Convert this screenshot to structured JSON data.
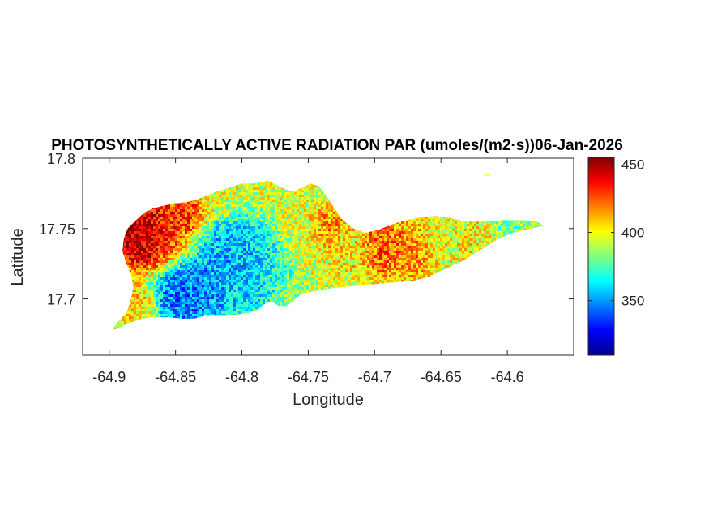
{
  "chart_data": {
    "type": "heatmap",
    "title": "PHOTOSYNTHETICALLY ACTIVE RADIATION PAR (umoles/(m2·s))06-Jan-2026",
    "xlabel": "Longitude",
    "ylabel": "Latitude",
    "xlim": [
      -64.92,
      -64.55
    ],
    "ylim": [
      17.66,
      17.8
    ],
    "xticks": [
      -64.9,
      -64.85,
      -64.8,
      -64.75,
      -64.7,
      -64.65,
      -64.6
    ],
    "xtick_labels": [
      "-64.9",
      "-64.85",
      "-64.8",
      "-64.75",
      "-64.7",
      "-64.65",
      "-64.6"
    ],
    "yticks": [
      17.7,
      17.75,
      17.8
    ],
    "ytick_labels": [
      "17.7",
      "17.75",
      "17.8"
    ],
    "grid": false,
    "colormap": "jet",
    "colorbar": {
      "clim": [
        310,
        455
      ],
      "ticks": [
        350,
        400,
        450
      ],
      "tick_labels": [
        "350",
        "400",
        "450"
      ]
    },
    "region": "St. Croix island outline",
    "outline_lonlat": [
      [
        -64.898,
        17.678
      ],
      [
        -64.893,
        17.684
      ],
      [
        -64.887,
        17.69
      ],
      [
        -64.884,
        17.698
      ],
      [
        -64.882,
        17.707
      ],
      [
        -64.883,
        17.716
      ],
      [
        -64.887,
        17.725
      ],
      [
        -64.89,
        17.734
      ],
      [
        -64.889,
        17.743
      ],
      [
        -64.886,
        17.75
      ],
      [
        -64.881,
        17.755
      ],
      [
        -64.875,
        17.76
      ],
      [
        -64.868,
        17.764
      ],
      [
        -64.86,
        17.766
      ],
      [
        -64.85,
        17.768
      ],
      [
        -64.84,
        17.769
      ],
      [
        -64.83,
        17.772
      ],
      [
        -64.82,
        17.776
      ],
      [
        -64.81,
        17.779
      ],
      [
        -64.8,
        17.782
      ],
      [
        -64.79,
        17.782
      ],
      [
        -64.78,
        17.784
      ],
      [
        -64.77,
        17.779
      ],
      [
        -64.762,
        17.776
      ],
      [
        -64.755,
        17.779
      ],
      [
        -64.748,
        17.782
      ],
      [
        -64.742,
        17.78
      ],
      [
        -64.736,
        17.773
      ],
      [
        -64.73,
        17.764
      ],
      [
        -64.724,
        17.756
      ],
      [
        -64.716,
        17.75
      ],
      [
        -64.707,
        17.747
      ],
      [
        -64.697,
        17.749
      ],
      [
        -64.687,
        17.753
      ],
      [
        -64.676,
        17.756
      ],
      [
        -64.665,
        17.758
      ],
      [
        -64.655,
        17.759
      ],
      [
        -64.645,
        17.758
      ],
      [
        -64.632,
        17.755
      ],
      [
        -64.618,
        17.755
      ],
      [
        -64.603,
        17.756
      ],
      [
        -64.588,
        17.756
      ],
      [
        -64.578,
        17.755
      ],
      [
        -64.572,
        17.752
      ],
      [
        -64.582,
        17.75
      ],
      [
        -64.596,
        17.747
      ],
      [
        -64.608,
        17.742
      ],
      [
        -64.62,
        17.735
      ],
      [
        -64.632,
        17.728
      ],
      [
        -64.645,
        17.722
      ],
      [
        -64.658,
        17.716
      ],
      [
        -64.67,
        17.713
      ],
      [
        -64.682,
        17.712
      ],
      [
        -64.694,
        17.711
      ],
      [
        -64.706,
        17.71
      ],
      [
        -64.718,
        17.709
      ],
      [
        -64.73,
        17.708
      ],
      [
        -64.742,
        17.706
      ],
      [
        -64.754,
        17.704
      ],
      [
        -64.76,
        17.7
      ],
      [
        -64.766,
        17.695
      ],
      [
        -64.772,
        17.695
      ],
      [
        -64.777,
        17.698
      ],
      [
        -64.782,
        17.697
      ],
      [
        -64.788,
        17.692
      ],
      [
        -64.795,
        17.69
      ],
      [
        -64.803,
        17.689
      ],
      [
        -64.812,
        17.688
      ],
      [
        -64.82,
        17.688
      ],
      [
        -64.828,
        17.688
      ],
      [
        -64.836,
        17.686
      ],
      [
        -64.845,
        17.686
      ],
      [
        -64.855,
        17.687
      ],
      [
        -64.865,
        17.687
      ],
      [
        -64.875,
        17.686
      ],
      [
        -64.885,
        17.683
      ],
      [
        -64.893,
        17.679
      ],
      [
        -64.898,
        17.678
      ]
    ],
    "hotspots": [
      {
        "lon": -64.875,
        "lat": 17.75,
        "value": 452,
        "radius": 0.016
      },
      {
        "lon": -64.855,
        "lat": 17.752,
        "value": 428,
        "radius": 0.018
      },
      {
        "lon": -64.842,
        "lat": 17.762,
        "value": 430,
        "radius": 0.01
      },
      {
        "lon": -64.82,
        "lat": 17.775,
        "value": 395,
        "radius": 0.012
      },
      {
        "lon": -64.815,
        "lat": 17.727,
        "value": 352,
        "radius": 0.022
      },
      {
        "lon": -64.84,
        "lat": 17.706,
        "value": 342,
        "radius": 0.016
      },
      {
        "lon": -64.795,
        "lat": 17.722,
        "value": 358,
        "radius": 0.018
      },
      {
        "lon": -64.775,
        "lat": 17.72,
        "value": 372,
        "radius": 0.012
      },
      {
        "lon": -64.752,
        "lat": 17.735,
        "value": 395,
        "radius": 0.014
      },
      {
        "lon": -64.735,
        "lat": 17.748,
        "value": 418,
        "radius": 0.01
      },
      {
        "lon": -64.72,
        "lat": 17.735,
        "value": 402,
        "radius": 0.012
      },
      {
        "lon": -64.695,
        "lat": 17.738,
        "value": 425,
        "radius": 0.012
      },
      {
        "lon": -64.672,
        "lat": 17.735,
        "value": 418,
        "radius": 0.012
      },
      {
        "lon": -64.65,
        "lat": 17.742,
        "value": 398,
        "radius": 0.012
      },
      {
        "lon": -64.625,
        "lat": 17.743,
        "value": 402,
        "radius": 0.01
      },
      {
        "lon": -64.6,
        "lat": 17.75,
        "value": 382,
        "radius": 0.01
      },
      {
        "lon": -64.884,
        "lat": 17.7,
        "value": 405,
        "radius": 0.01
      },
      {
        "lon": -64.76,
        "lat": 17.705,
        "value": 388,
        "radius": 0.01
      }
    ]
  }
}
